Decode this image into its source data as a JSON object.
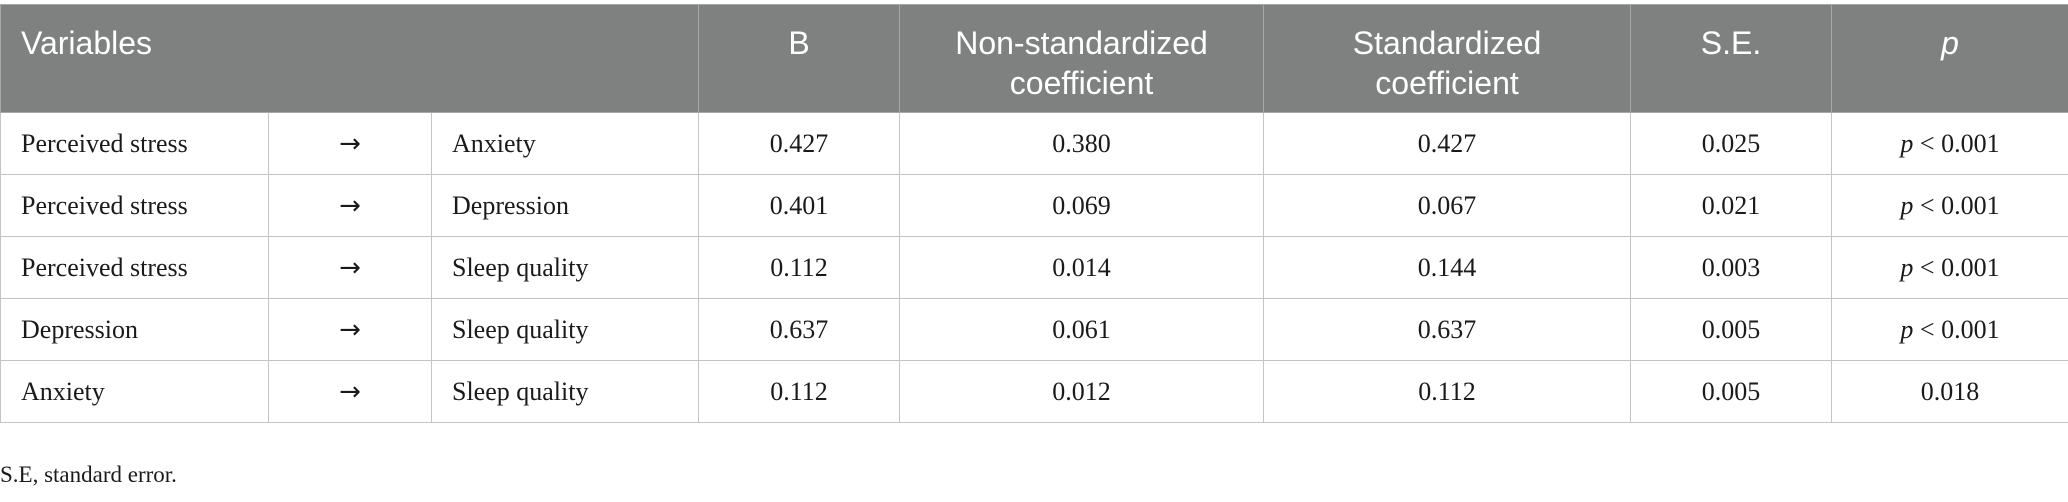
{
  "table": {
    "headers": {
      "variables": "Variables",
      "b": "B",
      "non_standardized_line1": "Non-standardized",
      "non_standardized_line2": "coefficient",
      "standardized_line1": "Standardized",
      "standardized_line2": "coefficient",
      "se": "S.E.",
      "p": "p"
    },
    "rows": [
      {
        "from": "Perceived stress",
        "arrow": "→",
        "to": "Anxiety",
        "b": "0.427",
        "non_std": "0.380",
        "std": "0.427",
        "se": "0.025",
        "p_symbol": "p",
        "p_value": " < 0.001"
      },
      {
        "from": "Perceived stress",
        "arrow": "→",
        "to": "Depression",
        "b": "0.401",
        "non_std": "0.069",
        "std": "0.067",
        "se": "0.021",
        "p_symbol": "p",
        "p_value": " < 0.001"
      },
      {
        "from": "Perceived stress",
        "arrow": "→",
        "to": "Sleep quality",
        "b": "0.112",
        "non_std": "0.014",
        "std": "0.144",
        "se": "0.003",
        "p_symbol": "p",
        "p_value": " < 0.001"
      },
      {
        "from": "Depression",
        "arrow": "→",
        "to": "Sleep quality",
        "b": "0.637",
        "non_std": "0.061",
        "std": "0.637",
        "se": "0.005",
        "p_symbol": "p",
        "p_value": " < 0.001"
      },
      {
        "from": "Anxiety",
        "arrow": "→",
        "to": "Sleep quality",
        "b": "0.112",
        "non_std": "0.012",
        "std": "0.112",
        "se": "0.005",
        "p_symbol": "",
        "p_value": "0.018"
      }
    ]
  },
  "footnote": "S.E, standard error.",
  "colors": {
    "header_background": "#7f8180",
    "header_text": "#ffffff",
    "border": "#c4c4c4"
  }
}
